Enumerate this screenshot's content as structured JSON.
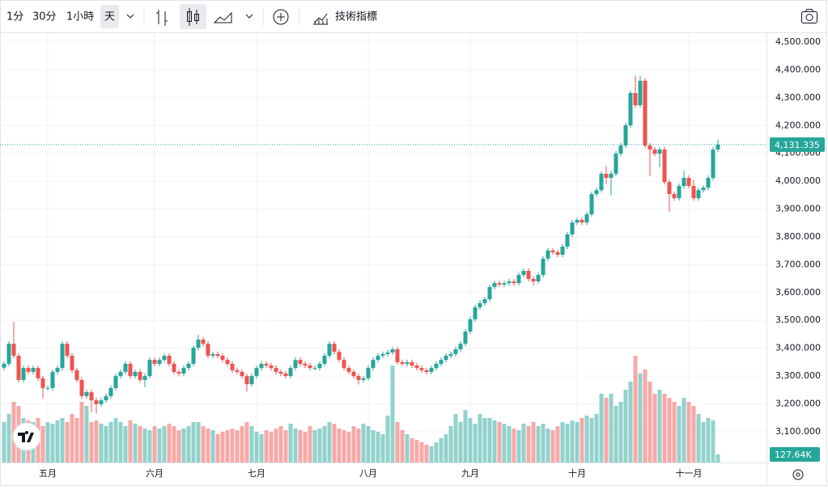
{
  "toolbar": {
    "intervals": [
      "1分",
      "30分",
      "1小時",
      "天"
    ],
    "indicators": "技術指標"
  },
  "chart_data": {
    "type": "candlestick",
    "categories": [
      null,
      null,
      null,
      null,
      null,
      null,
      null,
      null,
      null,
      "五月",
      null,
      null,
      null,
      null,
      null,
      null,
      null,
      null,
      null,
      null,
      null,
      null,
      null,
      null,
      null,
      null,
      null,
      null,
      null,
      null,
      null,
      "六月",
      null,
      null,
      null,
      null,
      null,
      null,
      null,
      null,
      null,
      null,
      null,
      null,
      null,
      null,
      null,
      null,
      null,
      null,
      null,
      null,
      "七月",
      null,
      null,
      null,
      null,
      null,
      null,
      null,
      null,
      null,
      null,
      null,
      null,
      null,
      null,
      null,
      null,
      null,
      null,
      null,
      null,
      null,
      null,
      "八月",
      null,
      null,
      null,
      null,
      null,
      null,
      null,
      null,
      null,
      null,
      null,
      null,
      null,
      null,
      null,
      null,
      null,
      null,
      null,
      null,
      "九月",
      null,
      null,
      null,
      null,
      null,
      null,
      null,
      null,
      null,
      null,
      null,
      null,
      null,
      null,
      null,
      null,
      null,
      null,
      null,
      null,
      null,
      "十月",
      null,
      null,
      null,
      null,
      null,
      null,
      null,
      null,
      null,
      null,
      null,
      null,
      null,
      null,
      null,
      null,
      null,
      null,
      null,
      null,
      null,
      null,
      "十一月",
      null,
      null,
      null,
      null,
      null,
      null
    ],
    "open": [
      3330,
      3344,
      3416,
      3373,
      3286,
      3329,
      3315,
      3329,
      3292,
      3257,
      3257,
      3315,
      3329,
      3416,
      3373,
      3321,
      3286,
      3228,
      3242,
      3213,
      3199,
      3213,
      3228,
      3257,
      3300,
      3315,
      3344,
      3300,
      3315,
      3286,
      3300,
      3358,
      3344,
      3358,
      3373,
      3344,
      3315,
      3309,
      3329,
      3344,
      3402,
      3431,
      3416,
      3373,
      3379,
      3373,
      3358,
      3344,
      3321,
      3315,
      3300,
      3271,
      3300,
      3329,
      3344,
      3338,
      3329,
      3315,
      3309,
      3300,
      3329,
      3358,
      3344,
      3338,
      3329,
      3329,
      3344,
      3373,
      3416,
      3387,
      3358,
      3329,
      3315,
      3300,
      3286,
      3292,
      3329,
      3358,
      3373,
      3379,
      3385,
      3396,
      3350,
      3344,
      3350,
      3338,
      3329,
      3321,
      3315,
      3329,
      3344,
      3358,
      3373,
      3379,
      3396,
      3416,
      3460,
      3504,
      3547,
      3562,
      3576,
      3620,
      3634,
      3629,
      3634,
      3640,
      3634,
      3663,
      3678,
      3649,
      3640,
      3663,
      3722,
      3751,
      3745,
      3736,
      3765,
      3809,
      3852,
      3861,
      3852,
      3881,
      3954,
      3968,
      4027,
      4012,
      4027,
      4099,
      4128,
      4201,
      4317,
      4273,
      4361,
      4128,
      4114,
      4099,
      4114,
      3997,
      3954,
      3939,
      3983,
      4012,
      3983,
      3939,
      3968,
      3977,
      4012,
      4114
    ],
    "high": [
      3353,
      3425,
      3495,
      3382,
      3338,
      3338,
      3338,
      3338,
      3301,
      3266,
      3324,
      3338,
      3425,
      3425,
      3382,
      3330,
      3295,
      3251,
      3251,
      3222,
      3222,
      3237,
      3266,
      3309,
      3324,
      3353,
      3353,
      3324,
      3324,
      3309,
      3367,
      3367,
      3367,
      3382,
      3382,
      3353,
      3324,
      3338,
      3353,
      3411,
      3448,
      3440,
      3425,
      3388,
      3388,
      3382,
      3367,
      3353,
      3330,
      3324,
      3309,
      3309,
      3338,
      3353,
      3353,
      3347,
      3338,
      3324,
      3318,
      3338,
      3367,
      3367,
      3353,
      3347,
      3338,
      3353,
      3382,
      3425,
      3425,
      3396,
      3367,
      3338,
      3324,
      3309,
      3301,
      3338,
      3367,
      3382,
      3388,
      3394,
      3405,
      3405,
      3359,
      3359,
      3359,
      3347,
      3338,
      3330,
      3338,
      3353,
      3367,
      3382,
      3388,
      3405,
      3425,
      3469,
      3513,
      3556,
      3571,
      3585,
      3629,
      3643,
      3643,
      3643,
      3649,
      3649,
      3672,
      3687,
      3687,
      3658,
      3672,
      3731,
      3760,
      3760,
      3754,
      3774,
      3818,
      3861,
      3870,
      3870,
      3890,
      3963,
      3977,
      4036,
      4055,
      4036,
      4108,
      4137,
      4210,
      4326,
      4380,
      4380,
      4370,
      4137,
      4123,
      4123,
      4123,
      4006,
      3963,
      3992,
      4040,
      4021,
      4005,
      3977,
      3986,
      4021,
      4123,
      4150
    ],
    "low": [
      3321,
      3335,
      3364,
      3277,
      3277,
      3306,
      3306,
      3283,
      3220,
      3248,
      3248,
      3306,
      3320,
      3364,
      3312,
      3277,
      3219,
      3219,
      3170,
      3165,
      3190,
      3204,
      3219,
      3248,
      3291,
      3306,
      3291,
      3291,
      3277,
      3260,
      3291,
      3335,
      3335,
      3349,
      3335,
      3306,
      3300,
      3300,
      3320,
      3335,
      3393,
      3407,
      3364,
      3364,
      3364,
      3349,
      3335,
      3312,
      3306,
      3291,
      3245,
      3262,
      3291,
      3320,
      3329,
      3320,
      3306,
      3300,
      3291,
      3291,
      3320,
      3335,
      3329,
      3320,
      3320,
      3320,
      3335,
      3364,
      3378,
      3349,
      3320,
      3306,
      3291,
      3270,
      3277,
      3283,
      3320,
      3349,
      3364,
      3370,
      3376,
      3341,
      3335,
      3335,
      3329,
      3320,
      3312,
      3306,
      3306,
      3320,
      3335,
      3349,
      3364,
      3370,
      3387,
      3407,
      3451,
      3495,
      3538,
      3553,
      3567,
      3611,
      3620,
      3620,
      3625,
      3625,
      3625,
      3654,
      3640,
      3625,
      3631,
      3654,
      3713,
      3736,
      3727,
      3727,
      3756,
      3800,
      3843,
      3843,
      3843,
      3872,
      3945,
      3959,
      3990,
      3950,
      4018,
      4090,
      4119,
      4192,
      4264,
      4264,
      4119,
      4020,
      4090,
      4050,
      3988,
      3890,
      3930,
      3930,
      3974,
      3974,
      3930,
      3930,
      3959,
      3968,
      4003,
      4105
    ],
    "close": [
      3344,
      3416,
      3373,
      3286,
      3329,
      3315,
      3329,
      3292,
      3257,
      3257,
      3315,
      3329,
      3416,
      3373,
      3321,
      3286,
      3228,
      3242,
      3213,
      3199,
      3213,
      3228,
      3257,
      3300,
      3315,
      3344,
      3300,
      3315,
      3286,
      3300,
      3358,
      3344,
      3358,
      3373,
      3344,
      3315,
      3309,
      3329,
      3344,
      3402,
      3431,
      3416,
      3373,
      3379,
      3373,
      3358,
      3344,
      3321,
      3315,
      3300,
      3271,
      3300,
      3329,
      3344,
      3338,
      3329,
      3315,
      3309,
      3300,
      3329,
      3358,
      3344,
      3338,
      3329,
      3329,
      3344,
      3373,
      3416,
      3387,
      3358,
      3329,
      3315,
      3300,
      3286,
      3292,
      3329,
      3358,
      3373,
      3379,
      3385,
      3396,
      3350,
      3344,
      3350,
      3338,
      3329,
      3321,
      3315,
      3329,
      3344,
      3358,
      3373,
      3379,
      3396,
      3416,
      3460,
      3504,
      3547,
      3562,
      3576,
      3620,
      3634,
      3629,
      3634,
      3640,
      3634,
      3663,
      3678,
      3649,
      3640,
      3663,
      3722,
      3751,
      3745,
      3736,
      3765,
      3809,
      3852,
      3861,
      3852,
      3881,
      3954,
      3968,
      4027,
      4012,
      4027,
      4099,
      4128,
      4201,
      4317,
      4273,
      4361,
      4128,
      4114,
      4099,
      4114,
      3997,
      3954,
      3939,
      3983,
      4012,
      3983,
      3939,
      3968,
      3977,
      4012,
      4114,
      4131.335
    ],
    "volume": [
      638,
      766,
      957,
      893,
      702,
      664,
      638,
      702,
      574,
      638,
      612,
      664,
      702,
      638,
      766,
      702,
      957,
      893,
      638,
      664,
      612,
      574,
      638,
      702,
      638,
      574,
      664,
      612,
      574,
      536,
      510,
      574,
      536,
      574,
      612,
      574,
      510,
      536,
      574,
      638,
      638,
      574,
      536,
      510,
      447,
      485,
      510,
      536,
      510,
      574,
      638,
      574,
      485,
      447,
      510,
      485,
      536,
      574,
      510,
      612,
      536,
      510,
      485,
      574,
      510,
      536,
      574,
      638,
      612,
      536,
      510,
      485,
      574,
      536,
      612,
      574,
      510,
      485,
      447,
      740,
      1531,
      638,
      510,
      447,
      383,
      357,
      319,
      281,
      255,
      319,
      383,
      447,
      574,
      766,
      638,
      829,
      702,
      612,
      766,
      702,
      702,
      664,
      638,
      612,
      574,
      536,
      510,
      612,
      574,
      638,
      574,
      612,
      536,
      510,
      574,
      638,
      612,
      664,
      638,
      702,
      740,
      702,
      766,
      1085,
      1021,
      1085,
      893,
      957,
      1148,
      1276,
      1684,
      1404,
      1467,
      1276,
      1085,
      1148,
      1085,
      1021,
      957,
      893,
      1021,
      957,
      893,
      766,
      638,
      702,
      664,
      127.64
    ],
    "up_color": "#26a69a",
    "down_color": "#ef5350",
    "ylim": [
      2989.4,
      4534.9
    ],
    "yticks": [
      {
        "value": 3100,
        "label": "3,100.000"
      },
      {
        "value": 3200,
        "label": "3,200.000"
      },
      {
        "value": 3300,
        "label": "3,300.000"
      },
      {
        "value": 3400,
        "label": "3,400.000"
      },
      {
        "value": 3500,
        "label": "3,500.000"
      },
      {
        "value": 3600,
        "label": "3,600.000"
      },
      {
        "value": 3700,
        "label": "3,700.000"
      },
      {
        "value": 3800,
        "label": "3,800.000"
      },
      {
        "value": 3900,
        "label": "3,900.000"
      },
      {
        "value": 4000,
        "label": "4,000.000"
      },
      {
        "value": 4100,
        "label": "4,100.000"
      },
      {
        "value": 4200,
        "label": "4,200.000"
      },
      {
        "value": 4300,
        "label": "4,300.000"
      },
      {
        "value": 4400,
        "label": "4,400.000"
      },
      {
        "value": 4500,
        "label": "4,500.000"
      }
    ],
    "price_label": {
      "value": 4131.335,
      "label": "4,131.335"
    },
    "volume_label": {
      "value": 127.64,
      "label": "127.64K"
    },
    "grid": true
  }
}
